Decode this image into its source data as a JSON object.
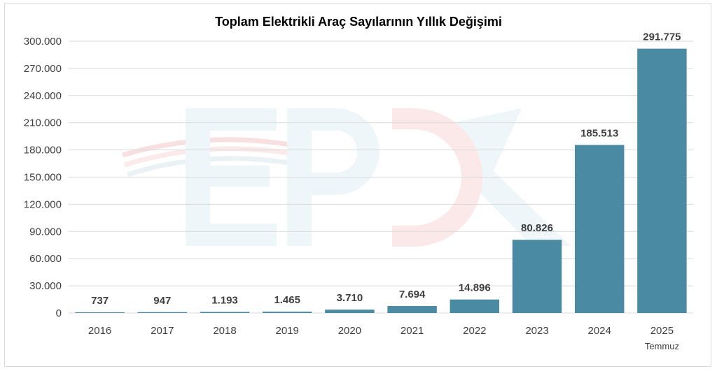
{
  "chart_data": {
    "type": "bar",
    "title": "Toplam Elektrikli Araç Sayılarının Yıllık Değişimi",
    "categories": [
      "2016",
      "2017",
      "2018",
      "2019",
      "2020",
      "2021",
      "2022",
      "2023",
      "2024",
      "2025"
    ],
    "category_sublabels": [
      "",
      "",
      "",
      "",
      "",
      "",
      "",
      "",
      "",
      "Temmuz"
    ],
    "values": [
      737,
      947,
      1193,
      1465,
      3710,
      7694,
      14896,
      80826,
      185513,
      291775
    ],
    "value_labels": [
      "737",
      "947",
      "1.193",
      "1.465",
      "3.710",
      "7.694",
      "14.896",
      "80.826",
      "185.513",
      "291.775"
    ],
    "ylim": [
      0,
      300000
    ],
    "yticks": [
      0,
      30000,
      60000,
      90000,
      120000,
      150000,
      180000,
      210000,
      240000,
      270000,
      300000
    ],
    "ytick_labels": [
      "0",
      "30.000",
      "60.000",
      "90.000",
      "120.000",
      "150.000",
      "180.000",
      "210.000",
      "240.000",
      "270.000",
      "300.000"
    ],
    "grid": true,
    "legend": "none",
    "bar_color": "#4a8aa3",
    "watermark_logo": "EPDK"
  }
}
